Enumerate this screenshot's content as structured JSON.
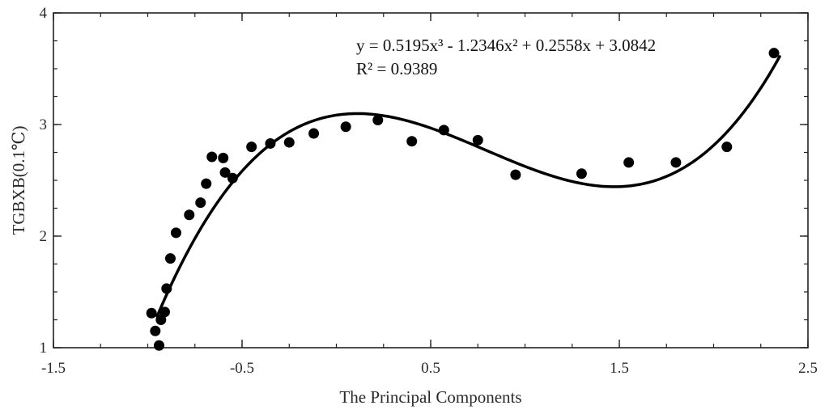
{
  "chart_data": {
    "type": "scatter",
    "title": "",
    "xlabel": "The Principal Components",
    "ylabel": "TGBXB(0.1℃)",
    "xlim": [
      -1.5,
      2.5
    ],
    "ylim": [
      1,
      4
    ],
    "x_ticks": [
      -1.5,
      -0.5,
      0.5,
      1.5,
      2.5
    ],
    "x_tick_labels": [
      "-1.5",
      "-0.5",
      "0.5",
      "1.5",
      "2.5"
    ],
    "x_minor_step": 0.25,
    "y_ticks": [
      1,
      2,
      3,
      4
    ],
    "y_tick_labels": [
      "1",
      "2",
      "3",
      "4"
    ],
    "y_minor_step": 0.25,
    "grid": false,
    "legend": "none",
    "annotation": {
      "equation": "y = 0.5195x³ - 1.2346x² + 0.2558x + 3.0842",
      "r_squared": "R² = 0.9389"
    },
    "fit": {
      "kind": "polynomial",
      "degree": 3,
      "coefficients": [
        0.5195,
        -1.2346,
        0.2558,
        3.0842
      ],
      "x_range": [
        -0.95,
        2.35
      ]
    },
    "points": [
      {
        "x": -0.98,
        "y": 1.31
      },
      {
        "x": -0.96,
        "y": 1.15
      },
      {
        "x": -0.94,
        "y": 1.02
      },
      {
        "x": -0.93,
        "y": 1.25
      },
      {
        "x": -0.91,
        "y": 1.32
      },
      {
        "x": -0.9,
        "y": 1.53
      },
      {
        "x": -0.88,
        "y": 1.8
      },
      {
        "x": -0.85,
        "y": 2.03
      },
      {
        "x": -0.78,
        "y": 2.19
      },
      {
        "x": -0.72,
        "y": 2.3
      },
      {
        "x": -0.69,
        "y": 2.47
      },
      {
        "x": -0.66,
        "y": 2.71
      },
      {
        "x": -0.6,
        "y": 2.7
      },
      {
        "x": -0.59,
        "y": 2.57
      },
      {
        "x": -0.55,
        "y": 2.52
      },
      {
        "x": -0.45,
        "y": 2.8
      },
      {
        "x": -0.35,
        "y": 2.83
      },
      {
        "x": -0.25,
        "y": 2.84
      },
      {
        "x": -0.12,
        "y": 2.92
      },
      {
        "x": 0.05,
        "y": 2.98
      },
      {
        "x": 0.22,
        "y": 3.04
      },
      {
        "x": 0.4,
        "y": 2.85
      },
      {
        "x": 0.57,
        "y": 2.95
      },
      {
        "x": 0.75,
        "y": 2.86
      },
      {
        "x": 0.95,
        "y": 2.55
      },
      {
        "x": 1.3,
        "y": 2.56
      },
      {
        "x": 1.55,
        "y": 2.66
      },
      {
        "x": 1.8,
        "y": 2.66
      },
      {
        "x": 2.07,
        "y": 2.8
      },
      {
        "x": 2.32,
        "y": 3.64
      }
    ]
  }
}
